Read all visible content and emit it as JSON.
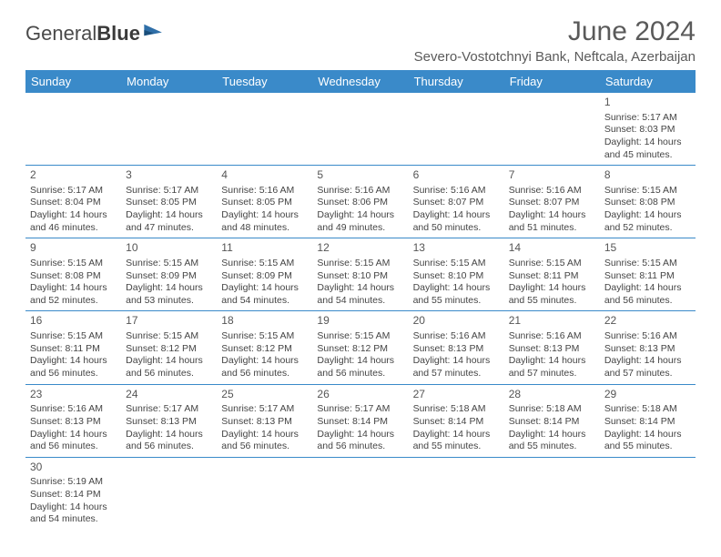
{
  "brand": {
    "part1": "General",
    "part2": "Blue"
  },
  "title": "June 2024",
  "location": "Severo-Vostotchnyi Bank, Neftcala, Azerbaijan",
  "colors": {
    "header_bg": "#3a8ac9",
    "header_text": "#ffffff",
    "border": "#3a8ac9",
    "title_text": "#5a5a5a",
    "body_text": "#444444",
    "logo_text": "#4a4a4a",
    "logo_accent": "#2f6fa8"
  },
  "typography": {
    "title_fontsize": 30,
    "location_fontsize": 15,
    "dayheader_fontsize": 13,
    "daynum_fontsize": 12,
    "cell_fontsize": 10.5
  },
  "day_headers": [
    "Sunday",
    "Monday",
    "Tuesday",
    "Wednesday",
    "Thursday",
    "Friday",
    "Saturday"
  ],
  "weeks": [
    [
      null,
      null,
      null,
      null,
      null,
      null,
      {
        "n": "1",
        "sr": "5:17 AM",
        "ss": "8:03 PM",
        "dl": "14 hours and 45 minutes."
      }
    ],
    [
      {
        "n": "2",
        "sr": "5:17 AM",
        "ss": "8:04 PM",
        "dl": "14 hours and 46 minutes."
      },
      {
        "n": "3",
        "sr": "5:17 AM",
        "ss": "8:05 PM",
        "dl": "14 hours and 47 minutes."
      },
      {
        "n": "4",
        "sr": "5:16 AM",
        "ss": "8:05 PM",
        "dl": "14 hours and 48 minutes."
      },
      {
        "n": "5",
        "sr": "5:16 AM",
        "ss": "8:06 PM",
        "dl": "14 hours and 49 minutes."
      },
      {
        "n": "6",
        "sr": "5:16 AM",
        "ss": "8:07 PM",
        "dl": "14 hours and 50 minutes."
      },
      {
        "n": "7",
        "sr": "5:16 AM",
        "ss": "8:07 PM",
        "dl": "14 hours and 51 minutes."
      },
      {
        "n": "8",
        "sr": "5:15 AM",
        "ss": "8:08 PM",
        "dl": "14 hours and 52 minutes."
      }
    ],
    [
      {
        "n": "9",
        "sr": "5:15 AM",
        "ss": "8:08 PM",
        "dl": "14 hours and 52 minutes."
      },
      {
        "n": "10",
        "sr": "5:15 AM",
        "ss": "8:09 PM",
        "dl": "14 hours and 53 minutes."
      },
      {
        "n": "11",
        "sr": "5:15 AM",
        "ss": "8:09 PM",
        "dl": "14 hours and 54 minutes."
      },
      {
        "n": "12",
        "sr": "5:15 AM",
        "ss": "8:10 PM",
        "dl": "14 hours and 54 minutes."
      },
      {
        "n": "13",
        "sr": "5:15 AM",
        "ss": "8:10 PM",
        "dl": "14 hours and 55 minutes."
      },
      {
        "n": "14",
        "sr": "5:15 AM",
        "ss": "8:11 PM",
        "dl": "14 hours and 55 minutes."
      },
      {
        "n": "15",
        "sr": "5:15 AM",
        "ss": "8:11 PM",
        "dl": "14 hours and 56 minutes."
      }
    ],
    [
      {
        "n": "16",
        "sr": "5:15 AM",
        "ss": "8:11 PM",
        "dl": "14 hours and 56 minutes."
      },
      {
        "n": "17",
        "sr": "5:15 AM",
        "ss": "8:12 PM",
        "dl": "14 hours and 56 minutes."
      },
      {
        "n": "18",
        "sr": "5:15 AM",
        "ss": "8:12 PM",
        "dl": "14 hours and 56 minutes."
      },
      {
        "n": "19",
        "sr": "5:15 AM",
        "ss": "8:12 PM",
        "dl": "14 hours and 56 minutes."
      },
      {
        "n": "20",
        "sr": "5:16 AM",
        "ss": "8:13 PM",
        "dl": "14 hours and 57 minutes."
      },
      {
        "n": "21",
        "sr": "5:16 AM",
        "ss": "8:13 PM",
        "dl": "14 hours and 57 minutes."
      },
      {
        "n": "22",
        "sr": "5:16 AM",
        "ss": "8:13 PM",
        "dl": "14 hours and 57 minutes."
      }
    ],
    [
      {
        "n": "23",
        "sr": "5:16 AM",
        "ss": "8:13 PM",
        "dl": "14 hours and 56 minutes."
      },
      {
        "n": "24",
        "sr": "5:17 AM",
        "ss": "8:13 PM",
        "dl": "14 hours and 56 minutes."
      },
      {
        "n": "25",
        "sr": "5:17 AM",
        "ss": "8:13 PM",
        "dl": "14 hours and 56 minutes."
      },
      {
        "n": "26",
        "sr": "5:17 AM",
        "ss": "8:14 PM",
        "dl": "14 hours and 56 minutes."
      },
      {
        "n": "27",
        "sr": "5:18 AM",
        "ss": "8:14 PM",
        "dl": "14 hours and 55 minutes."
      },
      {
        "n": "28",
        "sr": "5:18 AM",
        "ss": "8:14 PM",
        "dl": "14 hours and 55 minutes."
      },
      {
        "n": "29",
        "sr": "5:18 AM",
        "ss": "8:14 PM",
        "dl": "14 hours and 55 minutes."
      }
    ],
    [
      {
        "n": "30",
        "sr": "5:19 AM",
        "ss": "8:14 PM",
        "dl": "14 hours and 54 minutes."
      },
      null,
      null,
      null,
      null,
      null,
      null
    ]
  ],
  "labels": {
    "sunrise_prefix": "Sunrise: ",
    "sunset_prefix": "Sunset: ",
    "daylight_prefix": "Daylight: "
  }
}
